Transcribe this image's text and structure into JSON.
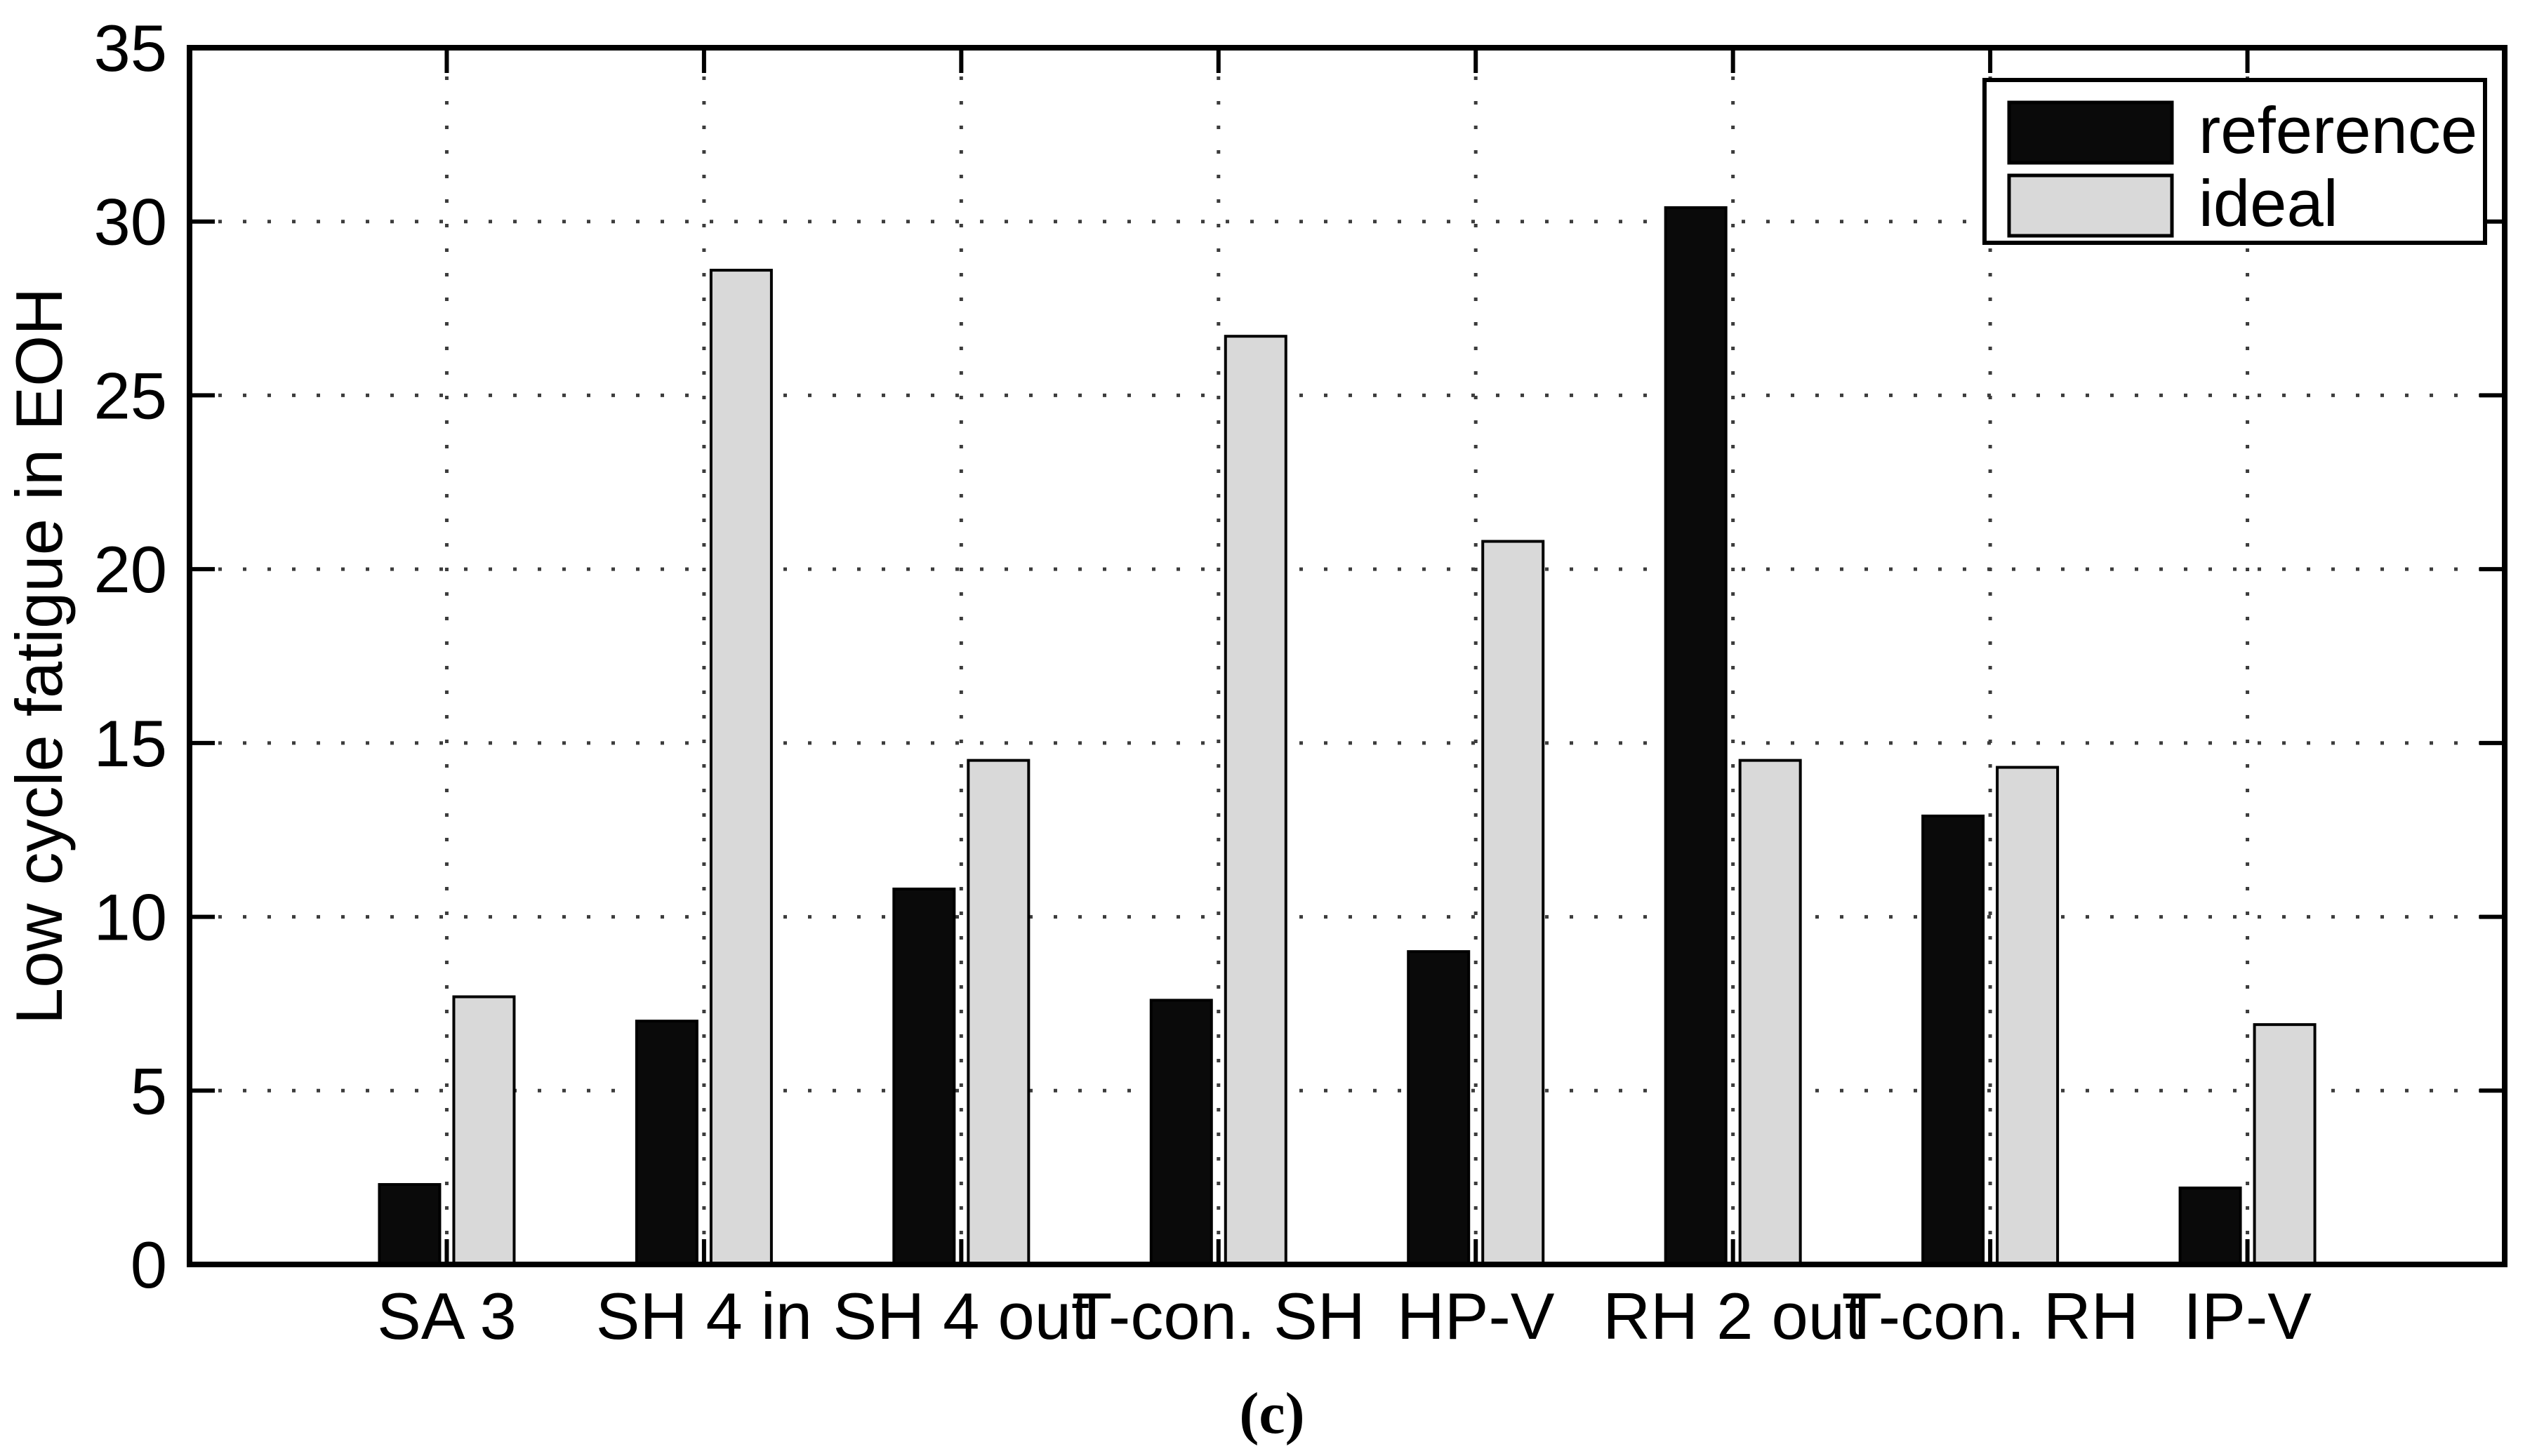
{
  "figure": {
    "caption": "(c)"
  },
  "legend": {
    "position": "top-right",
    "items": [
      {
        "label": "reference",
        "color": "#0a0a0a"
      },
      {
        "label": "ideal",
        "color": "#d9d9d9"
      }
    ]
  },
  "chart_data": {
    "type": "bar",
    "title": "",
    "xlabel": "",
    "ylabel": "Low cycle fatigue in EOH",
    "categories": [
      "SA 3",
      "SH 4 in",
      "SH 4 out",
      "T-con. SH",
      "HP-V",
      "RH 2 out",
      "T-con. RH",
      "IP-V"
    ],
    "series": [
      {
        "name": "reference",
        "color": "#0a0a0a",
        "edge": "#000000",
        "values": [
          2.3,
          7.0,
          10.8,
          7.6,
          9.0,
          30.4,
          12.9,
          2.2
        ]
      },
      {
        "name": "ideal",
        "color": "#d9d9d9",
        "edge": "#000000",
        "values": [
          7.7,
          28.6,
          14.5,
          26.7,
          20.8,
          14.5,
          14.3,
          6.9
        ]
      }
    ],
    "ylim": [
      0,
      35
    ],
    "yticks": [
      0,
      5,
      10,
      15,
      20,
      25,
      30,
      35
    ],
    "grid": true,
    "grid_style": "dotted",
    "grid_color": "#3c3c3c",
    "frame_color": "#000000",
    "legend_position": "top-right"
  }
}
